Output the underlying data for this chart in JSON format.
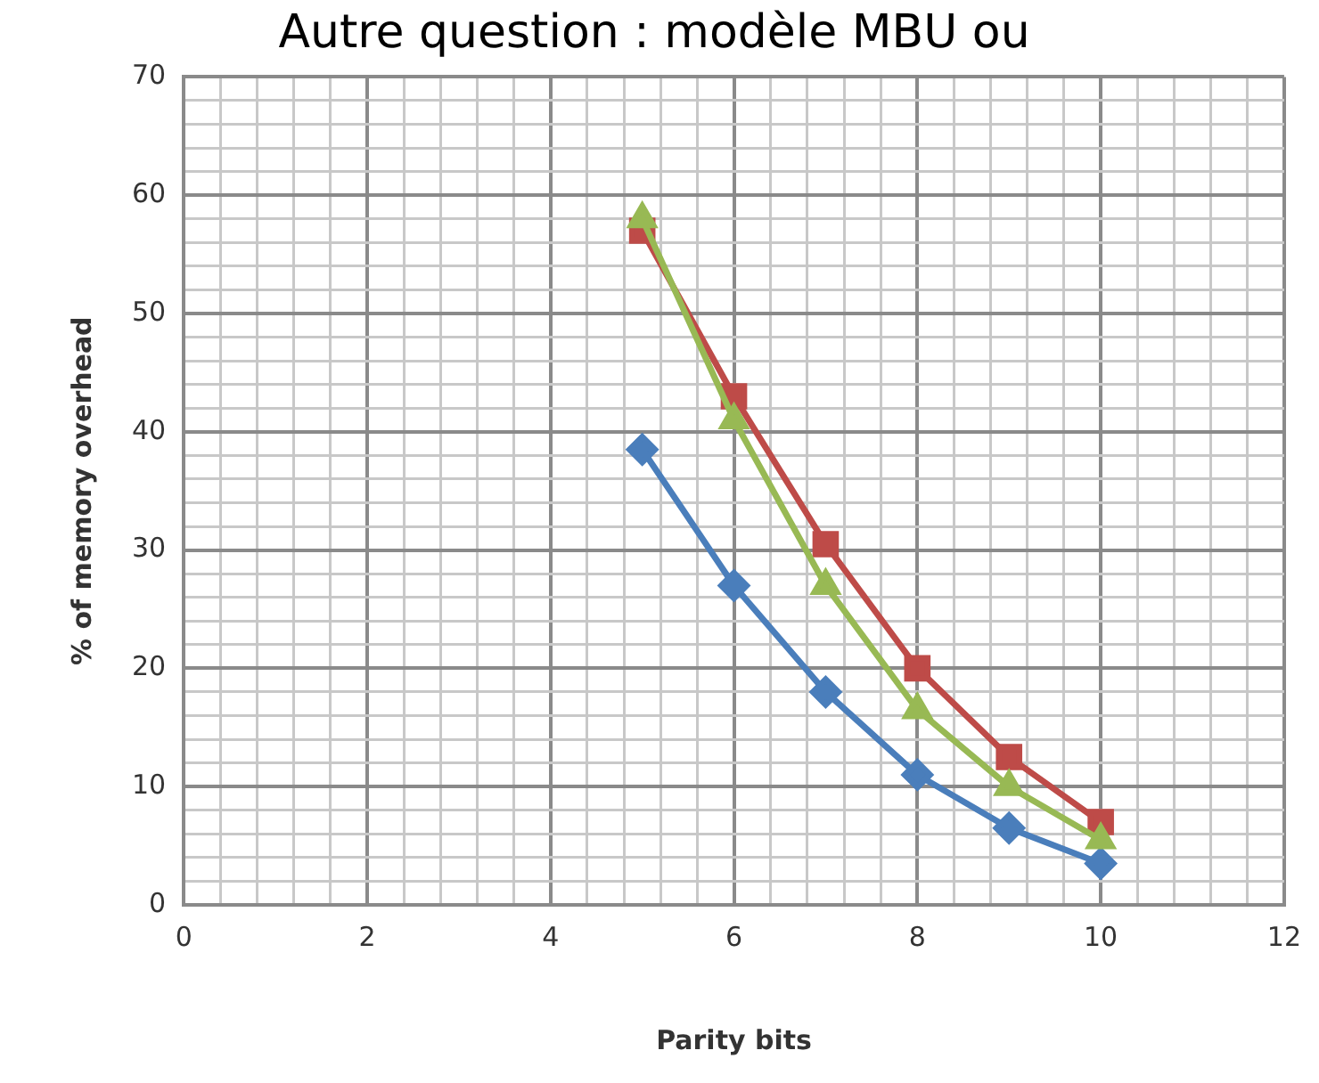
{
  "chart_data": {
    "type": "line",
    "title": "Autre question : modèle MBU ou",
    "xlabel": "Parity bits",
    "ylabel": "% of memory overhead",
    "x": [
      5,
      6,
      7,
      8,
      9,
      10
    ],
    "series": [
      {
        "color": "#4a7ebb",
        "marker": "diamond",
        "values": [
          38.5,
          27,
          18,
          11,
          6.5,
          3.5
        ]
      },
      {
        "color": "#be4b48",
        "marker": "square",
        "values": [
          57,
          43,
          30.5,
          20,
          12.5,
          7
        ]
      },
      {
        "color": "#98b954",
        "marker": "triangle",
        "values": [
          58,
          41,
          27,
          16.5,
          10,
          5.5
        ]
      }
    ],
    "xlim": [
      0,
      12
    ],
    "xticks": [
      0,
      {
        "value": 0.4,
        "label": null
      },
      {
        "value": 0.8,
        "label": null
      },
      {
        "value": 1.2,
        "label": null
      },
      {
        "value": 1.6,
        "label": null
      },
      2,
      {
        "value": 2.4,
        "label": null
      },
      {
        "value": 2.8,
        "label": null
      },
      {
        "value": 3.2,
        "label": null
      },
      {
        "value": 3.6,
        "label": null
      },
      4,
      {
        "value": 4.4,
        "label": null
      },
      {
        "value": 4.8,
        "label": null
      },
      {
        "value": 5.2,
        "label": null
      },
      {
        "value": 5.6,
        "label": null
      },
      6,
      {
        "value": 6.4,
        "label": null
      },
      {
        "value": 6.8,
        "label": null
      },
      {
        "value": 7.2,
        "label": null
      },
      {
        "value": 7.6,
        "label": null
      },
      8,
      {
        "value": 8.4,
        "label": null
      },
      {
        "value": 8.8,
        "label": null
      },
      {
        "value": 9.2,
        "label": null
      },
      {
        "value": 9.6,
        "label": null
      },
      10,
      {
        "value": 10.4,
        "label": null
      },
      {
        "value": 10.8,
        "label": null
      },
      {
        "value": 11.2,
        "label": null
      },
      {
        "value": 11.6,
        "label": null
      },
      12
    ],
    "ylim": [
      0,
      70
    ],
    "yticks": [
      0,
      {
        "value": 2,
        "label": null
      },
      {
        "value": 4,
        "label": null
      },
      {
        "value": 6,
        "label": null
      },
      {
        "value": 8,
        "label": null
      },
      10,
      {
        "value": 12,
        "label": null
      },
      {
        "value": 14,
        "label": null
      },
      {
        "value": 16,
        "label": null
      },
      {
        "value": 18,
        "label": null
      },
      20,
      {
        "value": 22,
        "label": null
      },
      {
        "value": 24,
        "label": null
      },
      {
        "value": 26,
        "label": null
      },
      {
        "value": 28,
        "label": null
      },
      30,
      {
        "value": 32,
        "label": null
      },
      {
        "value": 34,
        "label": null
      },
      {
        "value": 36,
        "label": null
      },
      {
        "value": 38,
        "label": null
      },
      40,
      {
        "value": 42,
        "label": null
      },
      {
        "value": 44,
        "label": null
      },
      {
        "value": 46,
        "label": null
      },
      {
        "value": 48,
        "label": null
      },
      50,
      {
        "value": 52,
        "label": null
      },
      {
        "value": 54,
        "label": null
      },
      {
        "value": 56,
        "label": null
      },
      {
        "value": 58,
        "label": null
      },
      60,
      {
        "value": 62,
        "label": null
      },
      {
        "value": 64,
        "label": null
      },
      {
        "value": 66,
        "label": null
      },
      {
        "value": 68,
        "label": null
      },
      70
    ],
    "grid": true,
    "legend": false,
    "line_style": "solid"
  }
}
